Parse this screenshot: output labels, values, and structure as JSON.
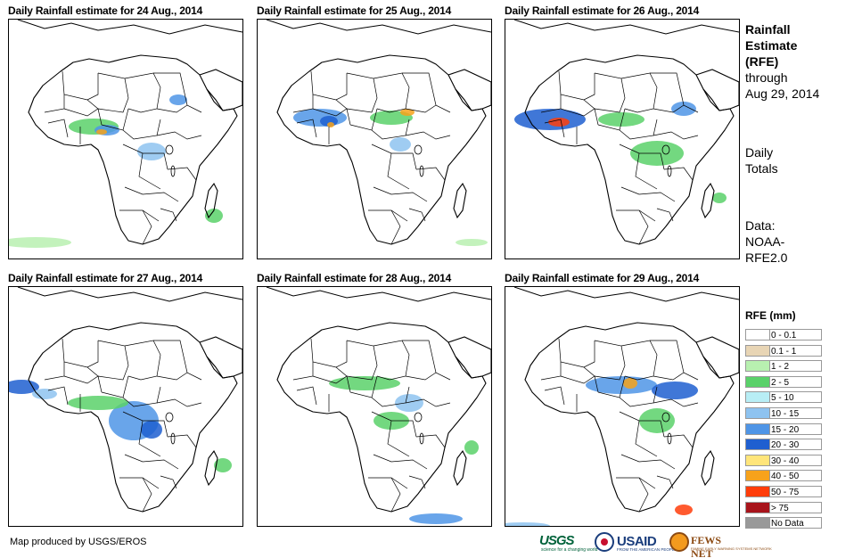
{
  "panels": [
    {
      "title": "Daily Rainfall estimate for 24 Aug., 2014"
    },
    {
      "title": "Daily Rainfall estimate for 25 Aug., 2014"
    },
    {
      "title": "Daily Rainfall estimate for 26 Aug., 2014"
    },
    {
      "title": "Daily Rainfall estimate for 27 Aug., 2014"
    },
    {
      "title": "Daily Rainfall estimate for 28 Aug., 2014"
    },
    {
      "title": "Daily Rainfall estimate for 29 Aug., 2014"
    }
  ],
  "side": {
    "product_line1": "Rainfall",
    "product_line2": "Estimate",
    "product_line3": "(RFE)",
    "through_line1": "through",
    "through_line2": "Aug 29, 2014",
    "totals_line1": "Daily",
    "totals_line2": "Totals",
    "data_line1": "Data:",
    "data_line2": "NOAA-",
    "data_line3": "RFE2.0"
  },
  "legend": {
    "title": "RFE (mm)",
    "items": [
      {
        "label": "0 - 0.1",
        "color": "#ffffff"
      },
      {
        "label": "0.1 - 1",
        "color": "#e8d5b5"
      },
      {
        "label": "1 - 2",
        "color": "#b8f0b0"
      },
      {
        "label": "2 - 5",
        "color": "#5ad16a"
      },
      {
        "label": "5 - 10",
        "color": "#b8eef5"
      },
      {
        "label": "10 - 15",
        "color": "#8ec3f0"
      },
      {
        "label": "15 - 20",
        "color": "#4f95e6"
      },
      {
        "label": "20 - 30",
        "color": "#1f5fd0"
      },
      {
        "label": "30 - 40",
        "color": "#ffe57a"
      },
      {
        "label": "40 - 50",
        "color": "#f7a21b"
      },
      {
        "label": "50 - 75",
        "color": "#ff3d0a"
      },
      {
        "label": "> 75",
        "color": "#a8141b"
      },
      {
        "label": "No Data",
        "color": "#999999"
      }
    ]
  },
  "credit": "Map produced by USGS/EROS",
  "logos": {
    "usgs": "USGS",
    "usgs_tag": "science for a changing world",
    "usaid": "USAID",
    "usaid_tag": "FROM THE AMERICAN PEOPLE",
    "fews": "FEWS NET",
    "fews_tag": "FAMINE EARLY WARNING SYSTEMS NETWORK"
  }
}
